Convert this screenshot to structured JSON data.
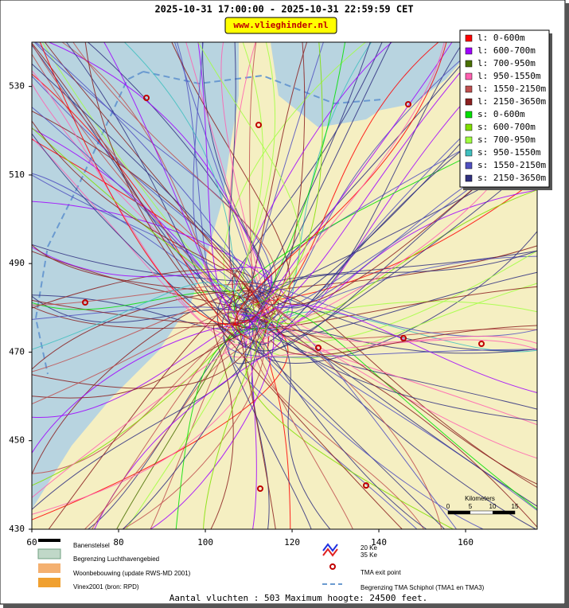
{
  "header": {
    "title": "2025-10-31 17:00:00 - 2025-10-31 22:59:59 CET",
    "website": "www.vlieghinder.nl"
  },
  "map": {
    "xlim": [
      60,
      176.5
    ],
    "ylim": [
      430,
      540
    ],
    "xticks": [
      60,
      80,
      100,
      120,
      140,
      160
    ],
    "yticks": [
      430,
      450,
      470,
      490,
      510,
      530
    ],
    "legend": [
      {
        "label": "l: 0-600m",
        "color": "#ff0000"
      },
      {
        "label": "l: 600-700m",
        "color": "#a000ff"
      },
      {
        "label": "l: 700-950m",
        "color": "#4a7000"
      },
      {
        "label": "l: 950-1550m",
        "color": "#ff60b0"
      },
      {
        "label": "l: 1550-2150m",
        "color": "#c05050"
      },
      {
        "label": "l: 2150-3650m",
        "color": "#8b2020"
      },
      {
        "label": "s: 0-600m",
        "color": "#00e000"
      },
      {
        "label": "s: 600-700m",
        "color": "#80e000"
      },
      {
        "label": "s: 700-950m",
        "color": "#a0ff40"
      },
      {
        "label": "s: 950-1550m",
        "color": "#40c0c0"
      },
      {
        "label": "s: 1550-2150m",
        "color": "#5050c0"
      },
      {
        "label": "s: 2150-3650m",
        "color": "#303080"
      }
    ],
    "scale": {
      "title": "Kilometers",
      "ticks": [
        "0",
        "5",
        "10",
        "15"
      ]
    }
  },
  "key": {
    "runways": "Banenstelsel",
    "airport_boundary": "Begrenzing Luchthavengebied",
    "housing": "Woonbebouwing (update RWS-MD 2001)",
    "vinex": "Vinex2001 (bron: RPD)",
    "ke20": "20 Ke",
    "ke35": "35 Ke",
    "exit_point": "TMA exit point",
    "tma_boundary": "Begrenzing TMA Schiphol  (TMA1 en TMA3)"
  },
  "footer": "Aantal vluchten : 503 Maximum hoogte: 24500 feet."
}
